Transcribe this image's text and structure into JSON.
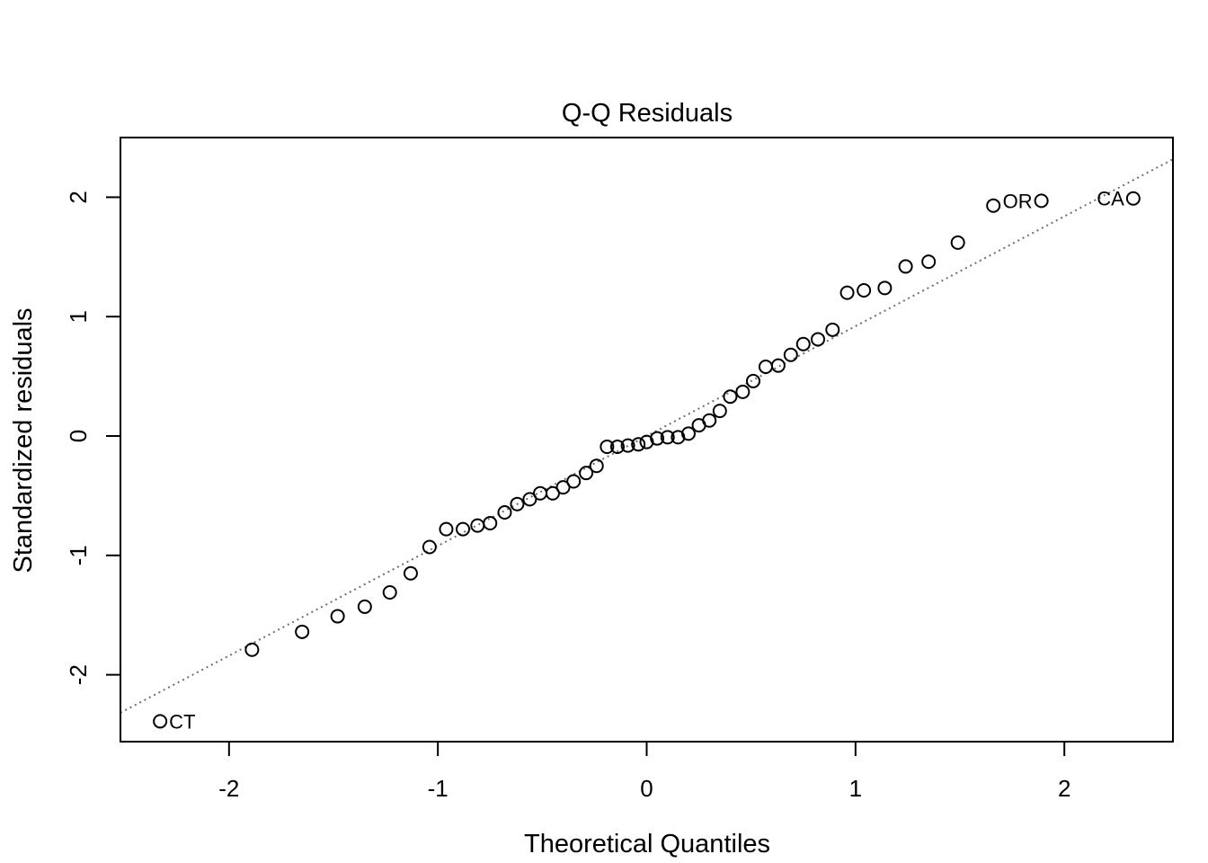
{
  "chart_data": {
    "type": "scatter",
    "title": "Q-Q Residuals",
    "xlabel": "Theoretical Quantiles",
    "ylabel": "Standardized residuals",
    "xlim": [
      -2.52,
      2.52
    ],
    "ylim": [
      -2.56,
      2.5
    ],
    "xticks": [
      -2,
      -1,
      0,
      1,
      2
    ],
    "yticks": [
      -2,
      -1,
      0,
      1,
      2
    ],
    "grid": false,
    "points": [
      {
        "x": -2.33,
        "y": -2.39,
        "label": "CT"
      },
      {
        "x": -1.89,
        "y": -1.79
      },
      {
        "x": -1.65,
        "y": -1.64
      },
      {
        "x": -1.48,
        "y": -1.51
      },
      {
        "x": -1.35,
        "y": -1.43
      },
      {
        "x": -1.23,
        "y": -1.31
      },
      {
        "x": -1.13,
        "y": -1.15
      },
      {
        "x": -1.04,
        "y": -0.93
      },
      {
        "x": -0.96,
        "y": -0.78
      },
      {
        "x": -0.88,
        "y": -0.78
      },
      {
        "x": -0.81,
        "y": -0.75
      },
      {
        "x": -0.75,
        "y": -0.73
      },
      {
        "x": -0.68,
        "y": -0.64
      },
      {
        "x": -0.62,
        "y": -0.57
      },
      {
        "x": -0.56,
        "y": -0.53
      },
      {
        "x": -0.51,
        "y": -0.48
      },
      {
        "x": -0.45,
        "y": -0.48
      },
      {
        "x": -0.4,
        "y": -0.43
      },
      {
        "x": -0.35,
        "y": -0.38
      },
      {
        "x": -0.29,
        "y": -0.31
      },
      {
        "x": -0.24,
        "y": -0.25
      },
      {
        "x": -0.19,
        "y": -0.09
      },
      {
        "x": -0.14,
        "y": -0.09
      },
      {
        "x": -0.09,
        "y": -0.08
      },
      {
        "x": -0.04,
        "y": -0.07
      },
      {
        "x": 0.0,
        "y": -0.05
      },
      {
        "x": 0.05,
        "y": -0.02
      },
      {
        "x": 0.1,
        "y": -0.01
      },
      {
        "x": 0.15,
        "y": -0.01
      },
      {
        "x": 0.2,
        "y": 0.02
      },
      {
        "x": 0.25,
        "y": 0.09
      },
      {
        "x": 0.3,
        "y": 0.13
      },
      {
        "x": 0.35,
        "y": 0.21
      },
      {
        "x": 0.4,
        "y": 0.33
      },
      {
        "x": 0.46,
        "y": 0.37
      },
      {
        "x": 0.51,
        "y": 0.46
      },
      {
        "x": 0.57,
        "y": 0.58
      },
      {
        "x": 0.63,
        "y": 0.59
      },
      {
        "x": 0.69,
        "y": 0.68
      },
      {
        "x": 0.75,
        "y": 0.77
      },
      {
        "x": 0.82,
        "y": 0.81
      },
      {
        "x": 0.89,
        "y": 0.89
      },
      {
        "x": 0.96,
        "y": 1.2
      },
      {
        "x": 1.04,
        "y": 1.22
      },
      {
        "x": 1.14,
        "y": 1.24
      },
      {
        "x": 1.24,
        "y": 1.42
      },
      {
        "x": 1.35,
        "y": 1.46
      },
      {
        "x": 1.49,
        "y": 1.62
      },
      {
        "x": 1.66,
        "y": 1.93
      },
      {
        "x": 1.89,
        "y": 1.97,
        "label": "OR",
        "label_side": "left"
      },
      {
        "x": 2.33,
        "y": 1.99,
        "label": "CA",
        "label_side": "left"
      }
    ],
    "reference_line": {
      "intercept": 0.0,
      "slope": 0.92,
      "style": "dotted",
      "color": "#6e6e6e"
    },
    "marker": {
      "shape": "open-circle",
      "color": "#000000"
    }
  }
}
